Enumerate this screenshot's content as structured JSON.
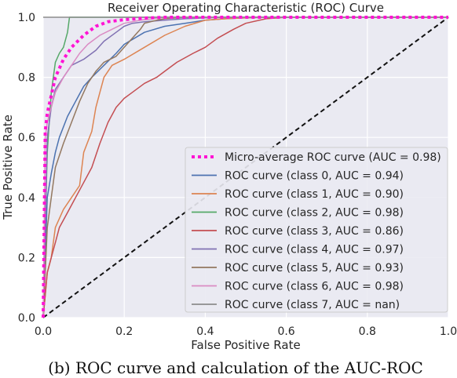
{
  "chart_data": {
    "type": "line",
    "title": "Receiver Operating Characteristic (ROC) Curve",
    "xlabel": "False Positive Rate",
    "ylabel": "True Positive Rate",
    "xlim": [
      0,
      1
    ],
    "ylim": [
      0,
      1
    ],
    "xticks": [
      "0.0",
      "0.2",
      "0.4",
      "0.6",
      "0.8",
      "1.0"
    ],
    "yticks": [
      "0.0",
      "0.2",
      "0.4",
      "0.6",
      "0.8",
      "1.0"
    ],
    "grid": true,
    "legend_position": "lower-right",
    "diagonal": {
      "x": [
        0,
        1
      ],
      "y": [
        0,
        1
      ],
      "color": "#111111"
    },
    "series": [
      {
        "name": "Micro-average ROC curve (AUC = 0.98)",
        "color": "#ff14d4",
        "style": "dotted",
        "x": [
          0,
          0.005,
          0.01,
          0.02,
          0.03,
          0.05,
          0.07,
          0.1,
          0.13,
          0.16,
          0.2,
          0.25,
          0.3,
          1.0
        ],
        "y": [
          0,
          0.62,
          0.68,
          0.74,
          0.8,
          0.86,
          0.9,
          0.94,
          0.97,
          0.985,
          0.992,
          0.997,
          1.0,
          1.0
        ]
      },
      {
        "name": "ROC curve (class 0, AUC = 0.94)",
        "color": "#4c72b0",
        "style": "solid",
        "x": [
          0,
          0.01,
          0.02,
          0.03,
          0.04,
          0.06,
          0.08,
          0.1,
          0.12,
          0.15,
          0.18,
          0.2,
          0.25,
          0.3,
          0.35,
          0.4,
          0.45,
          0.5,
          0.55,
          0.6,
          1.0
        ],
        "y": [
          0,
          0.4,
          0.48,
          0.55,
          0.6,
          0.67,
          0.72,
          0.77,
          0.8,
          0.84,
          0.88,
          0.91,
          0.95,
          0.97,
          0.98,
          0.99,
          0.995,
          0.998,
          1.0,
          1.0,
          1.0
        ]
      },
      {
        "name": "ROC curve (class 1, AUC = 0.90)",
        "color": "#dd8452",
        "style": "solid",
        "x": [
          0,
          0.01,
          0.02,
          0.03,
          0.05,
          0.07,
          0.09,
          0.1,
          0.12,
          0.13,
          0.14,
          0.15,
          0.17,
          0.2,
          0.25,
          0.3,
          0.35,
          0.4,
          0.45,
          0.5,
          0.55,
          0.6,
          1.0
        ],
        "y": [
          0,
          0.15,
          0.2,
          0.3,
          0.36,
          0.4,
          0.44,
          0.55,
          0.62,
          0.7,
          0.75,
          0.8,
          0.84,
          0.86,
          0.9,
          0.94,
          0.97,
          0.99,
          0.995,
          0.998,
          1.0,
          1.0,
          1.0
        ]
      },
      {
        "name": "ROC curve (class 2, AUC = 0.98)",
        "color": "#55a868",
        "style": "solid",
        "x": [
          0,
          0.003,
          0.01,
          0.015,
          0.02,
          0.03,
          0.04,
          0.05,
          0.06,
          0.065,
          0.07,
          1.0
        ],
        "y": [
          0,
          0.2,
          0.55,
          0.65,
          0.75,
          0.85,
          0.88,
          0.9,
          0.95,
          1.0,
          1.0,
          1.0
        ]
      },
      {
        "name": "ROC curve (class 3, AUC = 0.86)",
        "color": "#c44e52",
        "style": "solid",
        "x": [
          0,
          0.01,
          0.02,
          0.03,
          0.04,
          0.06,
          0.08,
          0.1,
          0.12,
          0.14,
          0.16,
          0.18,
          0.2,
          0.22,
          0.25,
          0.28,
          0.3,
          0.33,
          0.37,
          0.4,
          0.43,
          0.47,
          0.5,
          0.55,
          0.6,
          0.62,
          1.0
        ],
        "y": [
          0,
          0.15,
          0.2,
          0.25,
          0.3,
          0.35,
          0.4,
          0.45,
          0.5,
          0.58,
          0.65,
          0.7,
          0.73,
          0.75,
          0.78,
          0.8,
          0.82,
          0.85,
          0.88,
          0.9,
          0.93,
          0.96,
          0.98,
          0.995,
          1.0,
          1.0,
          1.0
        ]
      },
      {
        "name": "ROC curve (class 4, AUC = 0.97)",
        "color": "#8172b3",
        "style": "solid",
        "x": [
          0,
          0.01,
          0.02,
          0.03,
          0.05,
          0.07,
          0.1,
          0.13,
          0.15,
          0.18,
          0.2,
          0.22,
          0.25,
          0.3,
          0.35,
          0.4,
          0.45,
          0.5,
          1.0
        ],
        "y": [
          0,
          0.6,
          0.7,
          0.76,
          0.8,
          0.84,
          0.86,
          0.89,
          0.92,
          0.95,
          0.97,
          0.98,
          0.985,
          0.99,
          0.995,
          0.998,
          1.0,
          1.0,
          1.0
        ]
      },
      {
        "name": "ROC curve (class 5, AUC = 0.93)",
        "color": "#937860",
        "style": "solid",
        "x": [
          0,
          0.01,
          0.02,
          0.03,
          0.05,
          0.07,
          0.09,
          0.11,
          0.13,
          0.15,
          0.18,
          0.2,
          0.22,
          0.24,
          0.25,
          0.28,
          0.3,
          0.35,
          0.4,
          0.45,
          0.5,
          1.0
        ],
        "y": [
          0,
          0.3,
          0.4,
          0.5,
          0.58,
          0.65,
          0.72,
          0.78,
          0.82,
          0.85,
          0.87,
          0.9,
          0.93,
          0.96,
          0.98,
          0.99,
          0.995,
          1.0,
          1.0,
          1.0,
          1.0,
          1.0
        ]
      },
      {
        "name": "ROC curve (class 6, AUC = 0.98)",
        "color": "#da8bc3",
        "style": "solid",
        "x": [
          0,
          0.005,
          0.01,
          0.02,
          0.03,
          0.05,
          0.07,
          0.09,
          0.11,
          0.14,
          0.17,
          0.2,
          0.24,
          0.3,
          0.35,
          1.0
        ],
        "y": [
          0,
          0.6,
          0.65,
          0.7,
          0.75,
          0.8,
          0.84,
          0.88,
          0.91,
          0.94,
          0.96,
          0.98,
          0.99,
          1.0,
          1.0,
          1.0
        ]
      },
      {
        "name": "ROC curve (class 7, AUC = nan)",
        "color": "#8c8c8c",
        "style": "solid",
        "x": [
          0,
          1.0
        ],
        "y": [
          1.0,
          1.0
        ]
      }
    ]
  },
  "caption": "(b) ROC curve and calculation of the AUC-ROC"
}
